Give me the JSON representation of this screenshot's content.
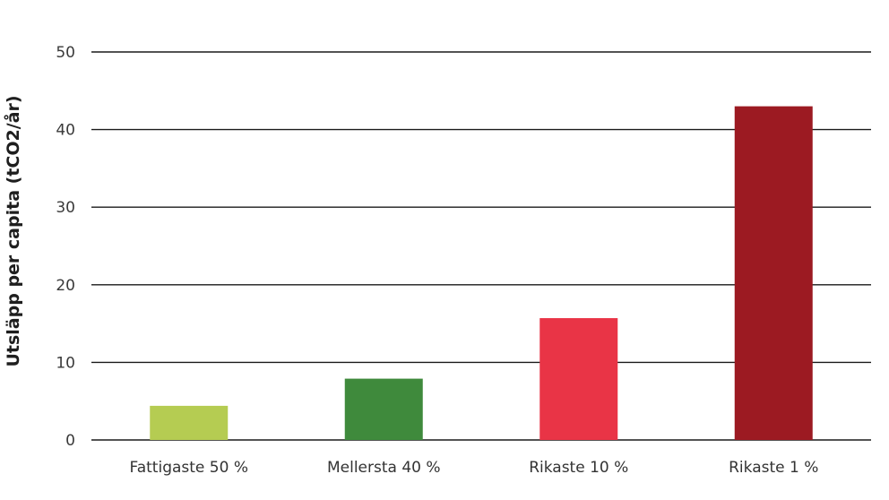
{
  "chart_data": {
    "type": "bar",
    "title": "",
    "xlabel": "",
    "ylabel": "Utsläpp per capita (tCO2/år)",
    "categories": [
      "Fattigaste 50 %",
      "Mellersta 40 %",
      "Rikaste 10 %",
      "Rikaste 1 %"
    ],
    "values": [
      4.4,
      7.9,
      15.7,
      43
    ],
    "colors": [
      "#b5cc52",
      "#3f8a3c",
      "#e93446",
      "#9c1a22"
    ],
    "ylim": [
      0,
      50
    ],
    "yticks": [
      "0",
      "10",
      "20",
      "30",
      "40",
      "50"
    ],
    "grid": true,
    "legend": "none"
  }
}
